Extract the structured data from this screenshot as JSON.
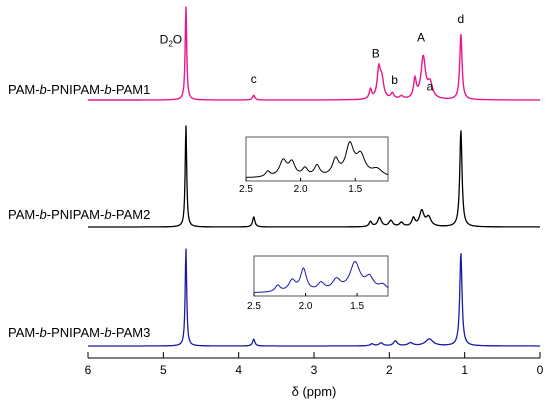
{
  "chart_data": {
    "type": "line",
    "title": "",
    "xlabel": "δ (ppm)",
    "xlim": [
      6,
      0
    ],
    "x_reversed": true,
    "xticks": [
      6,
      5,
      4,
      3,
      2,
      1,
      0
    ],
    "grid": false,
    "legend": "none",
    "series": [
      {
        "name": "PAM-b-PNIPAM-b-PAM1",
        "label_parts": [
          "PAM-",
          "b",
          "-PNIPAM-",
          "b",
          "-PAM1"
        ],
        "color": "#e8178a",
        "peaks": [
          {
            "x": 4.7,
            "h": 1.0,
            "w": 0.012
          },
          {
            "x": 3.8,
            "h": 0.05,
            "w": 0.018
          },
          {
            "x": 2.25,
            "h": 0.1,
            "w": 0.02
          },
          {
            "x": 2.14,
            "h": 0.3,
            "w": 0.025
          },
          {
            "x": 2.1,
            "h": 0.2,
            "w": 0.03
          },
          {
            "x": 1.96,
            "h": 0.06,
            "w": 0.025
          },
          {
            "x": 1.84,
            "h": 0.03,
            "w": 0.03
          },
          {
            "x": 1.66,
            "h": 0.2,
            "w": 0.022
          },
          {
            "x": 1.55,
            "h": 0.44,
            "w": 0.035
          },
          {
            "x": 1.46,
            "h": 0.16,
            "w": 0.04
          },
          {
            "x": 1.05,
            "h": 0.7,
            "w": 0.018
          }
        ],
        "annotations": [
          {
            "label": "D",
            "sub": "2",
            "after": "O",
            "x": 4.9,
            "y": 0.6
          },
          {
            "label": "c",
            "x": 3.8,
            "y": 0.18
          },
          {
            "label": "B",
            "x": 2.18,
            "y": 0.45
          },
          {
            "label": "b",
            "x": 1.93,
            "y": 0.17
          },
          {
            "label": "A",
            "x": 1.58,
            "y": 0.62
          },
          {
            "label": "a",
            "x": 1.46,
            "y": 0.1
          },
          {
            "label": "d",
            "x": 1.05,
            "y": 0.82
          }
        ]
      },
      {
        "name": "PAM-b-PNIPAM-b-PAM2",
        "label_parts": [
          "PAM-",
          "b",
          "-PNIPAM-",
          "b",
          "-PAM2"
        ],
        "color": "#000000",
        "peaks": [
          {
            "x": 4.7,
            "h": 1.0,
            "w": 0.012
          },
          {
            "x": 3.8,
            "h": 0.1,
            "w": 0.018
          },
          {
            "x": 2.25,
            "h": 0.05,
            "w": 0.022
          },
          {
            "x": 2.13,
            "h": 0.09,
            "w": 0.03
          },
          {
            "x": 1.98,
            "h": 0.06,
            "w": 0.03
          },
          {
            "x": 1.84,
            "h": 0.04,
            "w": 0.03
          },
          {
            "x": 1.68,
            "h": 0.08,
            "w": 0.025
          },
          {
            "x": 1.57,
            "h": 0.15,
            "w": 0.035
          },
          {
            "x": 1.48,
            "h": 0.09,
            "w": 0.04
          },
          {
            "x": 1.05,
            "h": 0.95,
            "w": 0.018
          }
        ],
        "inset": {
          "xlim": [
            2.5,
            1.2
          ],
          "xticks": [
            2.5,
            2.0,
            1.5
          ],
          "peaks": [
            {
              "x": 2.3,
              "h": 0.15,
              "w": 0.025
            },
            {
              "x": 2.16,
              "h": 0.45,
              "w": 0.04
            },
            {
              "x": 2.08,
              "h": 0.38,
              "w": 0.035
            },
            {
              "x": 1.96,
              "h": 0.22,
              "w": 0.03
            },
            {
              "x": 1.85,
              "h": 0.3,
              "w": 0.03
            },
            {
              "x": 1.68,
              "h": 0.45,
              "w": 0.035
            },
            {
              "x": 1.55,
              "h": 0.85,
              "w": 0.045
            },
            {
              "x": 1.45,
              "h": 0.55,
              "w": 0.05
            },
            {
              "x": 1.3,
              "h": 0.2,
              "w": 0.06
            }
          ]
        }
      },
      {
        "name": "PAM-b-PNIPAM-b-PAM3",
        "label_parts": [
          "PAM-",
          "b",
          "-PNIPAM-",
          "b",
          "-PAM3"
        ],
        "color": "#1a1aa6",
        "peaks": [
          {
            "x": 4.7,
            "h": 1.0,
            "w": 0.012
          },
          {
            "x": 3.8,
            "h": 0.07,
            "w": 0.018
          },
          {
            "x": 2.23,
            "h": 0.02,
            "w": 0.03
          },
          {
            "x": 2.11,
            "h": 0.03,
            "w": 0.03
          },
          {
            "x": 1.92,
            "h": 0.05,
            "w": 0.03
          },
          {
            "x": 1.72,
            "h": 0.03,
            "w": 0.04
          },
          {
            "x": 1.47,
            "h": 0.07,
            "w": 0.06
          },
          {
            "x": 1.05,
            "h": 0.95,
            "w": 0.018
          }
        ],
        "inset": {
          "xlim": [
            2.5,
            1.2
          ],
          "xticks": [
            2.5,
            2.0,
            1.5
          ],
          "peaks": [
            {
              "x": 2.27,
              "h": 0.2,
              "w": 0.03
            },
            {
              "x": 2.13,
              "h": 0.35,
              "w": 0.04
            },
            {
              "x": 2.02,
              "h": 0.7,
              "w": 0.035
            },
            {
              "x": 1.85,
              "h": 0.25,
              "w": 0.04
            },
            {
              "x": 1.7,
              "h": 0.35,
              "w": 0.05
            },
            {
              "x": 1.52,
              "h": 0.9,
              "w": 0.06
            },
            {
              "x": 1.38,
              "h": 0.4,
              "w": 0.05
            },
            {
              "x": 1.25,
              "h": 0.2,
              "w": 0.05
            }
          ]
        }
      }
    ]
  }
}
